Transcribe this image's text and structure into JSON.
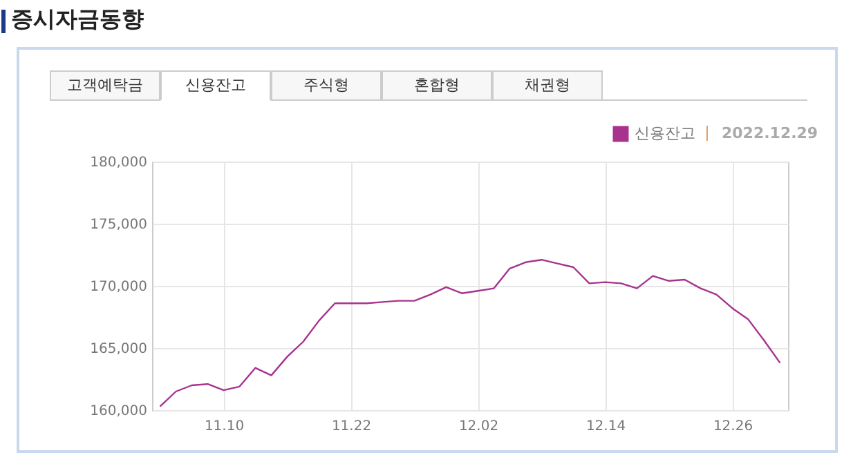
{
  "chart_data": {
    "type": "line",
    "title": "증시자금동향",
    "annotations": [
      "고객예탁금",
      "신용잔고",
      "주식형",
      "혼합형",
      "채권형",
      "2022.12.29"
    ],
    "categories": [
      null,
      null,
      null,
      null,
      "11.10",
      null,
      null,
      null,
      null,
      null,
      null,
      null,
      "11.22",
      null,
      null,
      null,
      null,
      null,
      null,
      null,
      "12.02",
      null,
      null,
      null,
      null,
      null,
      null,
      null,
      "12.14",
      null,
      null,
      null,
      null,
      null,
      null,
      null,
      "12.26",
      null,
      null,
      null
    ],
    "series": [
      {
        "name": "신용잔고",
        "color": "#a7338f",
        "values": [
          160300,
          161500,
          162000,
          162100,
          161600,
          161900,
          163400,
          162800,
          164300,
          165500,
          167200,
          168600,
          168600,
          168600,
          168700,
          168800,
          168800,
          169300,
          169900,
          169400,
          169600,
          169800,
          171400,
          171900,
          172100,
          171800,
          171500,
          170200,
          170300,
          170200,
          169800,
          170800,
          170400,
          170500,
          169800,
          169300,
          168200,
          167300,
          165600,
          163800
        ]
      }
    ],
    "ylim": [
      160000,
      180000
    ],
    "yticks": [
      {
        "value": 160000,
        "label": "160,000"
      },
      {
        "value": 165000,
        "label": "165,000"
      },
      {
        "value": 170000,
        "label": "170,000"
      },
      {
        "value": 175000,
        "label": "175,000"
      },
      {
        "value": 180000,
        "label": "180,000"
      }
    ],
    "grid": true,
    "legend": "top right",
    "marker": "none",
    "line_style": "solid"
  }
}
